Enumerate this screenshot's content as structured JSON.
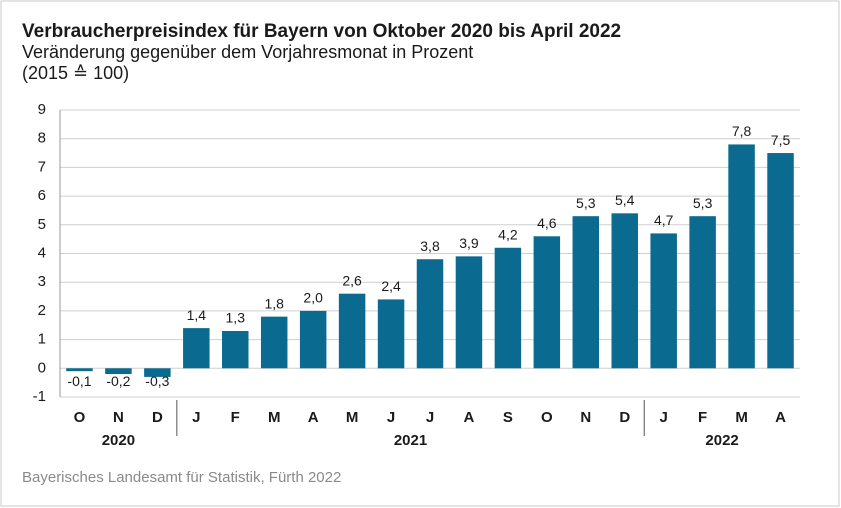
{
  "chart_data": {
    "type": "bar",
    "title": "Verbraucherpreisindex für Bayern von Oktober 2020 bis April 2022",
    "subtitle": "Veränderung gegenüber dem Vorjahresmonat in Prozent",
    "note": "(2015 ≙ 100)",
    "source": "Bayerisches Landesamt für Statistik, Fürth 2022",
    "categories": [
      "O",
      "N",
      "D",
      "J",
      "F",
      "M",
      "A",
      "M",
      "J",
      "J",
      "A",
      "S",
      "O",
      "N",
      "D",
      "J",
      "F",
      "M",
      "A"
    ],
    "groups": [
      {
        "label": "2020",
        "size": 3
      },
      {
        "label": "2021",
        "size": 12
      },
      {
        "label": "2022",
        "size": 4
      }
    ],
    "values": [
      -0.1,
      -0.2,
      -0.3,
      1.4,
      1.3,
      1.8,
      2.0,
      2.6,
      2.4,
      3.8,
      3.9,
      4.2,
      4.6,
      5.3,
      5.4,
      4.7,
      5.3,
      7.8,
      7.5
    ],
    "value_labels": [
      "-0,1",
      "-0,2",
      "-0,3",
      "1,4",
      "1,3",
      "1,8",
      "2,0",
      "2,6",
      "2,4",
      "3,8",
      "3,9",
      "4,2",
      "4,6",
      "5,3",
      "5,4",
      "4,7",
      "5,3",
      "7,8",
      "7,5"
    ],
    "color": "#0b6a8f",
    "ylim": [
      -1,
      9
    ],
    "yticks": [
      -1,
      0,
      1,
      2,
      3,
      4,
      5,
      6,
      7,
      8,
      9
    ],
    "grid": true
  }
}
